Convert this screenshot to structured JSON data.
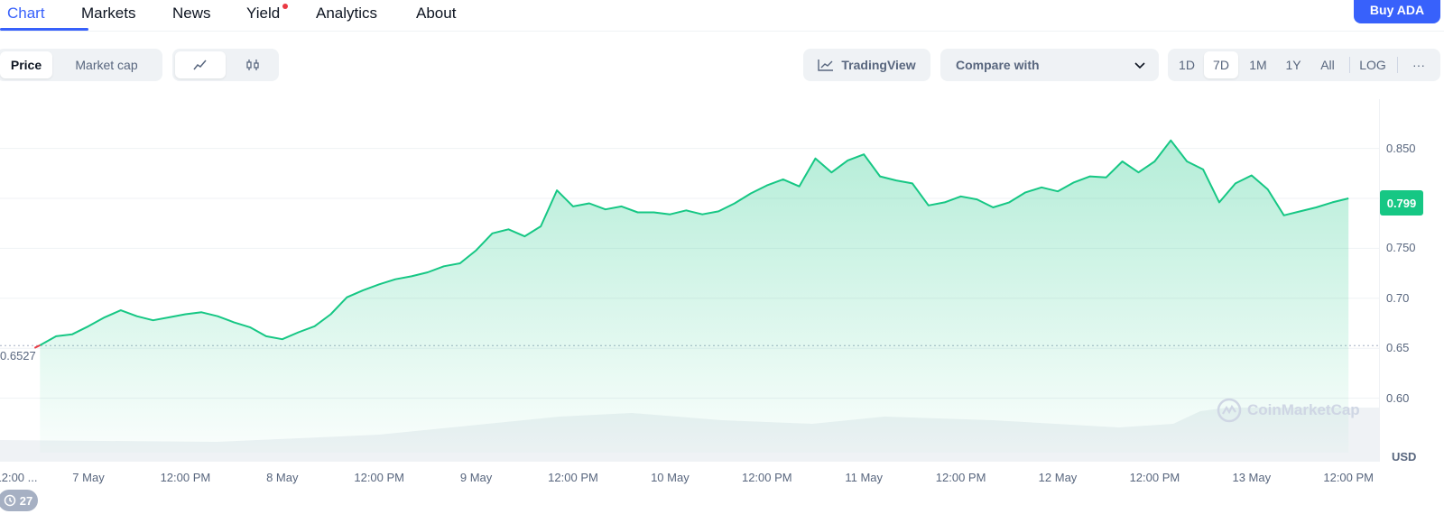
{
  "nav": {
    "tabs": [
      "Chart",
      "Markets",
      "News",
      "Yield",
      "Analytics",
      "About"
    ],
    "active_tab": "Chart",
    "buy_button": "Buy ADA"
  },
  "toolbar": {
    "metric_options": [
      "Price",
      "Market cap"
    ],
    "selected_metric": "Price",
    "chart_style_icons": [
      "line-chart-icon",
      "candlestick-icon"
    ],
    "tradingview_label": "TradingView",
    "compare_placeholder": "Compare with",
    "ranges": [
      "1D",
      "7D",
      "1M",
      "1Y",
      "All"
    ],
    "selected_range": "7D",
    "log_label": "LOG",
    "more_label": "···"
  },
  "colors": {
    "accent": "#3861fb",
    "up_green": "#16c784",
    "red": "#ea3943",
    "grid": "#eff2f5",
    "muted_text": "#58667e"
  },
  "chart_data": {
    "type": "area",
    "currency": "USD",
    "current_price_label": "0.799",
    "start_price_label": "0.6527",
    "ylim": [
      0.58,
      0.93
    ],
    "y_ticks": [
      "0.850",
      "0.80",
      "0.750",
      "0.70",
      "0.65",
      "0.60"
    ],
    "y_tick_values": [
      0.85,
      0.8,
      0.75,
      0.7,
      0.65,
      0.6
    ],
    "x_ticks": [
      "12:00 ...",
      "7 May",
      "12:00 PM",
      "8 May",
      "12:00 PM",
      "9 May",
      "12:00 PM",
      "10 May",
      "12:00 PM",
      "11 May",
      "12:00 PM",
      "12 May",
      "12:00 PM",
      "13 May",
      "12:00 PM"
    ],
    "x_tick_hours": [
      -12,
      0,
      12,
      24,
      36,
      48,
      60,
      72,
      84,
      96,
      108,
      120,
      132,
      144,
      156
    ],
    "x_range_hours": [
      -12,
      156
    ],
    "series": [
      {
        "hours": [
          -6,
          -4,
          -2,
          0,
          2,
          4,
          6,
          8,
          10,
          12,
          14,
          16,
          18,
          20,
          22,
          24,
          26,
          28,
          30,
          32,
          34,
          36,
          38,
          40,
          42,
          44,
          46,
          48,
          50,
          52,
          54,
          56,
          58,
          60,
          62,
          64,
          66,
          68,
          70,
          72,
          74,
          76,
          78,
          80,
          82,
          84,
          86,
          88,
          90,
          92,
          94,
          96,
          98,
          100,
          102,
          104,
          106,
          108,
          110,
          112,
          114,
          116,
          118,
          120,
          122,
          124,
          126,
          128,
          130,
          132,
          134,
          136,
          138,
          140,
          142,
          144,
          146,
          148,
          150,
          152,
          154,
          156
        ],
        "values": [
          0.653,
          0.662,
          0.664,
          0.672,
          0.681,
          0.688,
          0.682,
          0.678,
          0.681,
          0.684,
          0.686,
          0.682,
          0.676,
          0.671,
          0.662,
          0.659,
          0.666,
          0.672,
          0.684,
          0.701,
          0.708,
          0.714,
          0.719,
          0.722,
          0.726,
          0.732,
          0.735,
          0.748,
          0.765,
          0.769,
          0.762,
          0.772,
          0.808,
          0.792,
          0.795,
          0.789,
          0.792,
          0.786,
          0.786,
          0.784,
          0.788,
          0.784,
          0.787,
          0.795,
          0.805,
          0.813,
          0.819,
          0.812,
          0.84,
          0.826,
          0.838,
          0.844,
          0.822,
          0.818,
          0.815,
          0.793,
          0.796,
          0.802,
          0.799,
          0.791,
          0.796,
          0.806,
          0.811,
          0.807,
          0.816,
          0.822,
          0.821,
          0.837,
          0.826,
          0.837,
          0.858,
          0.837,
          0.829,
          0.796,
          0.815,
          0.823,
          0.809,
          0.783,
          0.787,
          0.791,
          0.796,
          0.8
        ]
      }
    ],
    "volume_bars_shown": true
  },
  "watermark": "CoinMarketCap",
  "events_badge": "27"
}
